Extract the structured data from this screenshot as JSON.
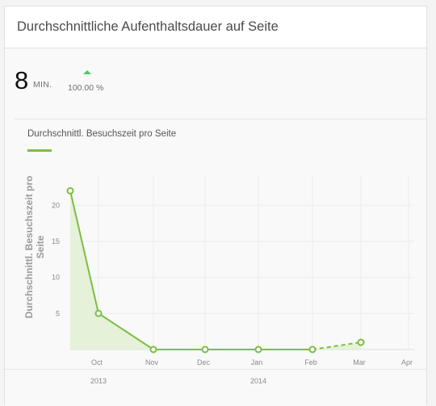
{
  "card": {
    "title": "Durchschnittliche Aufenthaltsdauer auf Seite"
  },
  "metric": {
    "value": "8",
    "unit": "MIN.",
    "trend_icon": "arrow-up-icon",
    "trend_text": "100.00 %"
  },
  "legend": {
    "label": "Durchschnittl. Besuchszeit pro Seite",
    "color": "#7dbd42"
  },
  "chart_data": {
    "type": "line",
    "series": [
      {
        "name": "Durchschnittl. Besuchszeit pro Seite",
        "x": [
          "2013-09",
          "2013-10",
          "2013-11",
          "2013-12",
          "2014-01",
          "2014-02",
          "2014-03"
        ],
        "values": [
          22,
          5,
          0,
          0,
          0,
          0,
          1
        ],
        "projected_from_index": 5
      }
    ],
    "x_ticks": [
      "Oct",
      "Nov",
      "Dec",
      "Jan",
      "Feb",
      "Mar",
      "Apr"
    ],
    "x_years": [
      "2013",
      "2014"
    ],
    "y_ticks": [
      "5",
      "10",
      "15",
      "20"
    ],
    "ylabel_lines": [
      "Durchschnittl. Besuchszeit pro",
      "Seite"
    ],
    "ylim": [
      0,
      23
    ],
    "grid": true,
    "line_color": "#7dbd42",
    "fill_color": "#e2f0d3"
  }
}
